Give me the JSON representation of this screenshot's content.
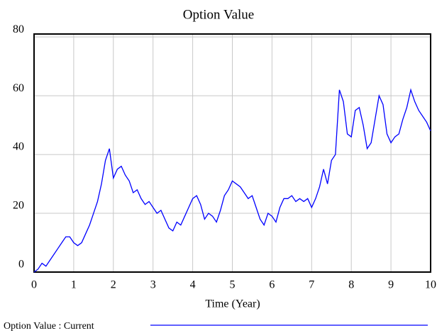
{
  "chart_data": {
    "type": "line",
    "title": "Option Value",
    "x_label": "Time (Year)",
    "x": [
      0,
      0.1,
      0.2,
      0.3,
      0.4,
      0.5,
      0.6,
      0.7,
      0.8,
      0.9,
      1,
      1.1,
      1.2,
      1.3,
      1.4,
      1.5,
      1.6,
      1.7,
      1.8,
      1.9,
      2,
      2.1,
      2.2,
      2.3,
      2.4,
      2.5,
      2.6,
      2.7,
      2.8,
      2.9,
      3,
      3.1,
      3.2,
      3.3,
      3.4,
      3.5,
      3.6,
      3.7,
      3.8,
      3.9,
      4,
      4.1,
      4.2,
      4.3,
      4.4,
      4.5,
      4.6,
      4.7,
      4.8,
      4.9,
      5,
      5.1,
      5.2,
      5.3,
      5.4,
      5.5,
      5.6,
      5.7,
      5.8,
      5.9,
      6,
      6.1,
      6.2,
      6.3,
      6.4,
      6.5,
      6.6,
      6.7,
      6.8,
      6.9,
      7,
      7.1,
      7.2,
      7.3,
      7.4,
      7.5,
      7.6,
      7.7,
      7.8,
      7.9,
      8,
      8.1,
      8.2,
      8.3,
      8.4,
      8.5,
      8.6,
      8.7,
      8.8,
      8.9,
      9,
      9.1,
      9.2,
      9.3,
      9.4,
      9.5,
      9.6,
      9.7,
      9.8,
      9.9,
      10
    ],
    "series": [
      {
        "name": "Option Value : Current",
        "color": "#0000ff",
        "values": [
          0,
          1,
          3,
          2,
          4,
          6,
          8,
          10,
          12,
          12,
          10,
          9,
          10,
          13,
          16,
          20,
          24,
          30,
          38,
          42,
          32,
          35,
          36,
          33,
          31,
          27,
          28,
          25,
          23,
          24,
          22,
          20,
          21,
          18,
          15,
          14,
          17,
          16,
          19,
          22,
          25,
          26,
          23,
          18,
          20,
          19,
          17,
          21,
          26,
          28,
          31,
          30,
          29,
          27,
          25,
          26,
          22,
          18,
          16,
          20,
          19,
          17,
          22,
          25,
          25,
          26,
          24,
          25,
          24,
          25,
          22,
          25,
          29,
          35,
          30,
          38,
          40,
          62,
          58,
          47,
          46,
          55,
          56,
          50,
          42,
          44,
          52,
          60,
          57,
          47,
          44,
          46,
          47,
          52,
          56,
          62,
          58,
          55,
          53,
          51,
          48
        ]
      }
    ],
    "xlim": [
      0,
      10
    ],
    "ylim": [
      0,
      81
    ],
    "xticks": [
      0,
      1,
      2,
      3,
      4,
      5,
      6,
      7,
      8,
      9,
      10
    ],
    "yticks": [
      0,
      20,
      40,
      60,
      80
    ],
    "grid": true
  }
}
